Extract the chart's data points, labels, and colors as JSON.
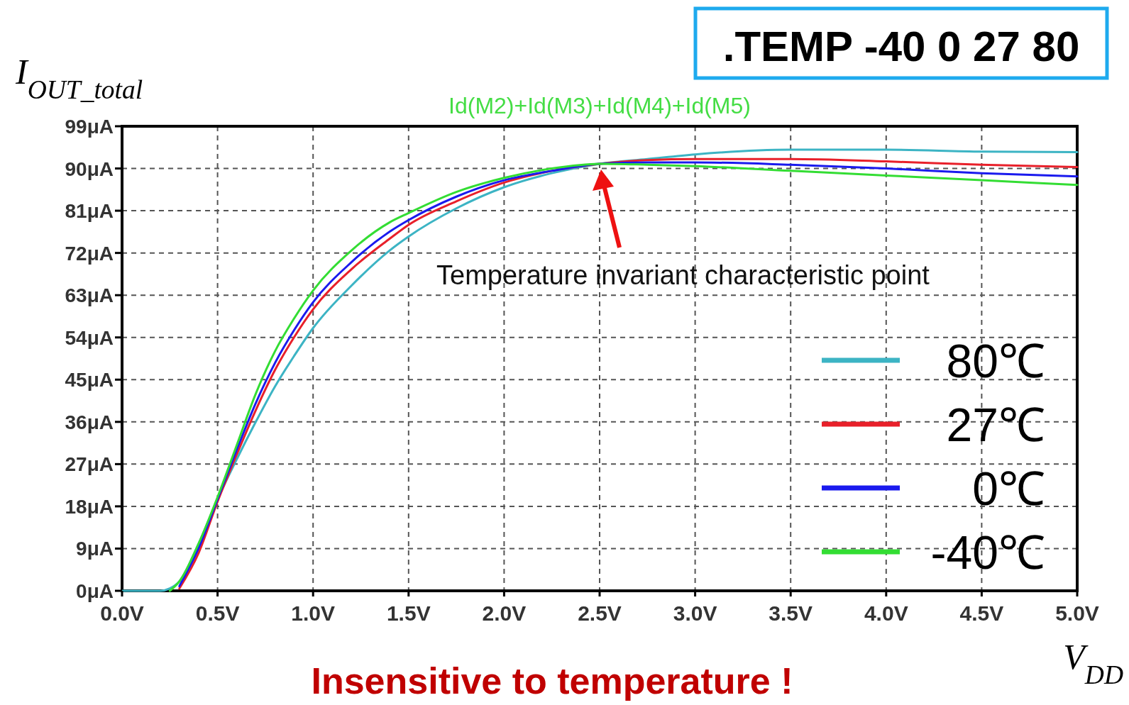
{
  "chart_data": {
    "type": "line",
    "title": "Id(M2)+Id(M3)+Id(M4)+Id(M5)",
    "xlabel": "V$_{DD}$",
    "ylabel": "I$_{OUT_total}$",
    "x": [
      0,
      0.2,
      0.25,
      0.3,
      0.4,
      0.5,
      0.6,
      0.7,
      0.8,
      0.9,
      1.0,
      1.2,
      1.4,
      1.5,
      1.75,
      2.0,
      2.25,
      2.5,
      2.75,
      3.0,
      3.5,
      4.0,
      4.5,
      5.0
    ],
    "series": [
      {
        "name": "80℃",
        "color": "#3cb4c4",
        "values": [
          0,
          0,
          0.5,
          2,
          10,
          19.5,
          28,
          36,
          43.5,
          50,
          56,
          65,
          72.5,
          75.5,
          81.5,
          86,
          89,
          91,
          92,
          93,
          94,
          94,
          93.6,
          93.5
        ]
      },
      {
        "name": "27℃",
        "color": "#e8202a",
        "values": [
          null,
          null,
          null,
          0.5,
          8,
          19,
          29,
          38.5,
          47,
          54,
          60,
          68.5,
          75,
          78,
          83,
          87,
          89.5,
          91,
          91.8,
          92,
          92,
          91.5,
          90.8,
          90.3
        ]
      },
      {
        "name": "0℃",
        "color": "#1a1aee",
        "values": [
          null,
          null,
          null,
          1,
          9,
          19.5,
          30,
          40,
          48.5,
          55.5,
          61.5,
          70,
          76.5,
          79,
          84,
          87.5,
          89.5,
          91,
          91.3,
          91.3,
          90.8,
          90,
          89,
          88.3
        ]
      },
      {
        "name": "-40℃",
        "color": "#33dd33",
        "values": [
          null,
          null,
          0,
          2,
          10,
          20,
          31,
          42,
          51,
          58,
          64,
          72.5,
          78.5,
          80.5,
          85,
          88,
          90,
          91,
          90.8,
          90.5,
          89.5,
          88.5,
          87.5,
          86.5
        ]
      }
    ],
    "xlim": [
      0,
      5
    ],
    "xticks": [
      {
        "value": 0,
        "label": "0.0V"
      },
      {
        "value": 0.5,
        "label": "0.5V"
      },
      {
        "value": 1,
        "label": "1.0V"
      },
      {
        "value": 1.5,
        "label": "1.5V"
      },
      {
        "value": 2,
        "label": "2.0V"
      },
      {
        "value": 2.5,
        "label": "2.5V"
      },
      {
        "value": 3,
        "label": "3.0V"
      },
      {
        "value": 3.5,
        "label": "3.5V"
      },
      {
        "value": 4,
        "label": "4.0V"
      },
      {
        "value": 4.5,
        "label": "4.5V"
      },
      {
        "value": 5,
        "label": "5.0V"
      }
    ],
    "ylim": [
      0,
      99
    ],
    "yticks": [
      {
        "value": 0,
        "label": "0μA"
      },
      {
        "value": 9,
        "label": "9μA"
      },
      {
        "value": 18,
        "label": "18μA"
      },
      {
        "value": 27,
        "label": "27μA"
      },
      {
        "value": 36,
        "label": "36μA"
      },
      {
        "value": 45,
        "label": "45μA"
      },
      {
        "value": 54,
        "label": "54μA"
      },
      {
        "value": 63,
        "label": "63μA"
      },
      {
        "value": 72,
        "label": "72μA"
      },
      {
        "value": 81,
        "label": "81μA"
      },
      {
        "value": 90,
        "label": "90μA"
      },
      {
        "value": 99,
        "label": "99μA"
      }
    ],
    "grid": true,
    "legend": "right",
    "line_style": "solid",
    "annotations": [
      ".TEMP -40 0 27 80",
      "Temperature invariant characteristic point",
      "Insensitive to temperature !"
    ]
  }
}
